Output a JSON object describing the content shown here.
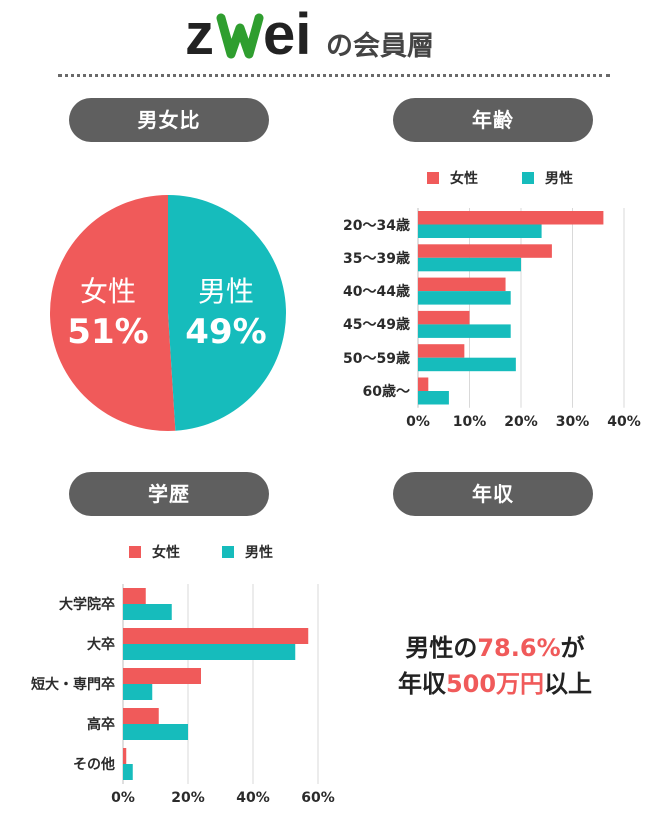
{
  "header": {
    "logo_text": "zwei",
    "title": "の会員層"
  },
  "colors": {
    "female": "#f05a5a",
    "male": "#16bcbc",
    "pill": "#5f5f5f",
    "grid": "#d9d9d9",
    "logo_z": "#222222",
    "logo_w": "#2f9e2f"
  },
  "sections": {
    "gender": "男女比",
    "age": "年齢",
    "education": "学歴",
    "income": "年収"
  },
  "legend": {
    "female": "女性",
    "male": "男性"
  },
  "income_callout": {
    "line1_prefix": "男性の",
    "line1_value": "78.6%",
    "line1_suffix": "が",
    "line2_prefix": "年収",
    "line2_value": "500万円",
    "line2_suffix": "以上"
  },
  "chart_data": [
    {
      "type": "pie",
      "slices": [
        {
          "label": "女性",
          "value": 51,
          "display": "51%"
        },
        {
          "label": "男性",
          "value": 49,
          "display": "49%"
        }
      ]
    },
    {
      "type": "bar",
      "orientation": "horizontal",
      "categories": [
        "20〜34歳",
        "35〜39歳",
        "40〜44歳",
        "45〜49歳",
        "50〜59歳",
        "60歳〜"
      ],
      "series": [
        {
          "name": "女性",
          "values": [
            36,
            26,
            17,
            10,
            9,
            2
          ]
        },
        {
          "name": "男性",
          "values": [
            24,
            20,
            18,
            18,
            19,
            6
          ]
        }
      ],
      "xlim": [
        0,
        40
      ],
      "ticks": [
        "0%",
        "10%",
        "20%",
        "30%",
        "40%"
      ],
      "tick_values": [
        0,
        10,
        20,
        30,
        40
      ],
      "grid": true,
      "legend": "top"
    },
    {
      "type": "bar",
      "orientation": "horizontal",
      "categories": [
        "大学院卒",
        "大卒",
        "短大・専門卒",
        "高卒",
        "その他"
      ],
      "series": [
        {
          "name": "女性",
          "values": [
            7,
            57,
            24,
            11,
            1
          ]
        },
        {
          "name": "男性",
          "values": [
            15,
            53,
            9,
            20,
            3
          ]
        }
      ],
      "xlim": [
        0,
        60
      ],
      "ticks": [
        "0%",
        "20%",
        "40%",
        "60%"
      ],
      "tick_values": [
        0,
        20,
        40,
        60
      ],
      "grid": true,
      "legend": "top"
    }
  ]
}
